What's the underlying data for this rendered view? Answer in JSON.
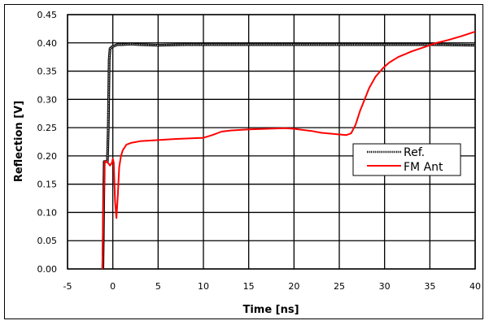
{
  "chart_data": {
    "type": "line",
    "title": "",
    "xlabel": "Time [ns]",
    "ylabel": "Reflection [V]",
    "xlim": [
      -5,
      40
    ],
    "ylim": [
      0,
      0.45
    ],
    "xticks": [
      -5,
      0,
      5,
      10,
      15,
      20,
      25,
      30,
      35,
      40
    ],
    "yticks": [
      0.0,
      0.05,
      0.1,
      0.15,
      0.2,
      0.25,
      0.3,
      0.35,
      0.4,
      0.45
    ],
    "xtick_labels": [
      "-5",
      "0",
      "5",
      "10",
      "15",
      "20",
      "25",
      "30",
      "35",
      "40"
    ],
    "ytick_labels": [
      "0.00",
      "0.05",
      "0.10",
      "0.15",
      "0.20",
      "0.25",
      "0.30",
      "0.35",
      "0.40",
      "0.45"
    ],
    "grid": true,
    "legend_position": "inside-right",
    "series": [
      {
        "name": "Ref.",
        "color": "#000000",
        "style": "dotted-markers",
        "x": [
          -1.1,
          -1.05,
          -1.0,
          -0.95,
          -0.6,
          -0.5,
          -0.4,
          -0.3,
          -0.1,
          0.2,
          0.5,
          1,
          2,
          3,
          5,
          8,
          10,
          15,
          20,
          25,
          30,
          35,
          40
        ],
        "y": [
          0.0,
          0.06,
          0.13,
          0.19,
          0.19,
          0.25,
          0.37,
          0.39,
          0.393,
          0.395,
          0.397,
          0.397,
          0.398,
          0.397,
          0.396,
          0.397,
          0.397,
          0.397,
          0.397,
          0.397,
          0.397,
          0.397,
          0.396
        ]
      },
      {
        "name": "FM Ant",
        "color": "#ff0000",
        "style": "solid",
        "x": [
          -1.15,
          -1.1,
          -1.0,
          -0.9,
          -0.7,
          -0.5,
          -0.3,
          -0.1,
          0.0,
          0.1,
          0.25,
          0.4,
          0.55,
          0.7,
          0.9,
          1.1,
          1.5,
          2,
          3,
          5,
          7,
          10,
          11,
          12,
          13,
          15,
          17,
          19,
          20,
          22,
          23,
          25,
          25.8,
          26.3,
          26.8,
          27.3,
          27.8,
          28.3,
          29,
          29.8,
          30.5,
          31.5,
          33,
          34.5,
          35.5,
          37,
          38.5,
          40
        ],
        "y": [
          0.0,
          0.05,
          0.13,
          0.19,
          0.19,
          0.187,
          0.183,
          0.188,
          0.195,
          0.188,
          0.12,
          0.09,
          0.13,
          0.18,
          0.2,
          0.21,
          0.22,
          0.223,
          0.226,
          0.228,
          0.23,
          0.232,
          0.237,
          0.243,
          0.245,
          0.247,
          0.248,
          0.249,
          0.248,
          0.244,
          0.241,
          0.238,
          0.237,
          0.24,
          0.255,
          0.28,
          0.3,
          0.32,
          0.34,
          0.355,
          0.365,
          0.375,
          0.385,
          0.393,
          0.399,
          0.405,
          0.412,
          0.42
        ]
      }
    ]
  },
  "legend": {
    "items": [
      {
        "label": "Ref.",
        "color": "#000000"
      },
      {
        "label": "FM Ant",
        "color": "#ff0000"
      }
    ]
  },
  "axes": {
    "xlabel": "Time [ns]",
    "ylabel": "Reflection [V]"
  }
}
